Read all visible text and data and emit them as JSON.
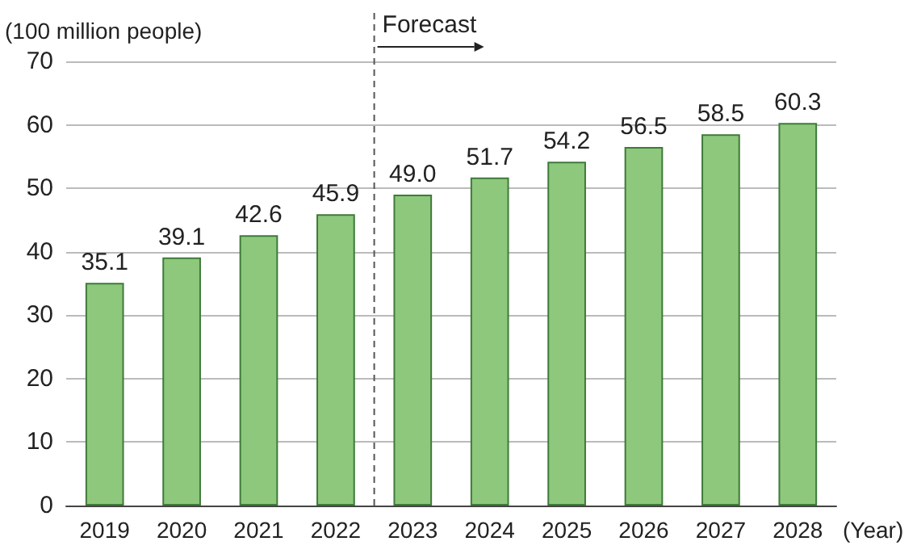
{
  "chart_data": {
    "type": "bar",
    "ylabel": "(100 million people)",
    "xlabel": "(Year)",
    "categories": [
      "2019",
      "2020",
      "2021",
      "2022",
      "2023",
      "2024",
      "2025",
      "2026",
      "2027",
      "2028"
    ],
    "values": [
      35.1,
      39.1,
      42.6,
      45.9,
      49.0,
      51.7,
      54.2,
      56.5,
      58.5,
      60.3
    ],
    "value_labels": [
      "35.1",
      "39.1",
      "42.6",
      "45.9",
      "49.0",
      "51.7",
      "54.2",
      "56.5",
      "58.5",
      "60.3"
    ],
    "color": "#8dc87c",
    "ylim": [
      0,
      70
    ],
    "yticks": [
      0,
      10,
      20,
      30,
      40,
      50,
      60,
      70
    ],
    "grid": "y",
    "ref_lines": [
      {
        "axis": "x",
        "value": "2023",
        "label": "Forecast",
        "line_style": "dashed",
        "color": "#555555"
      }
    ]
  }
}
